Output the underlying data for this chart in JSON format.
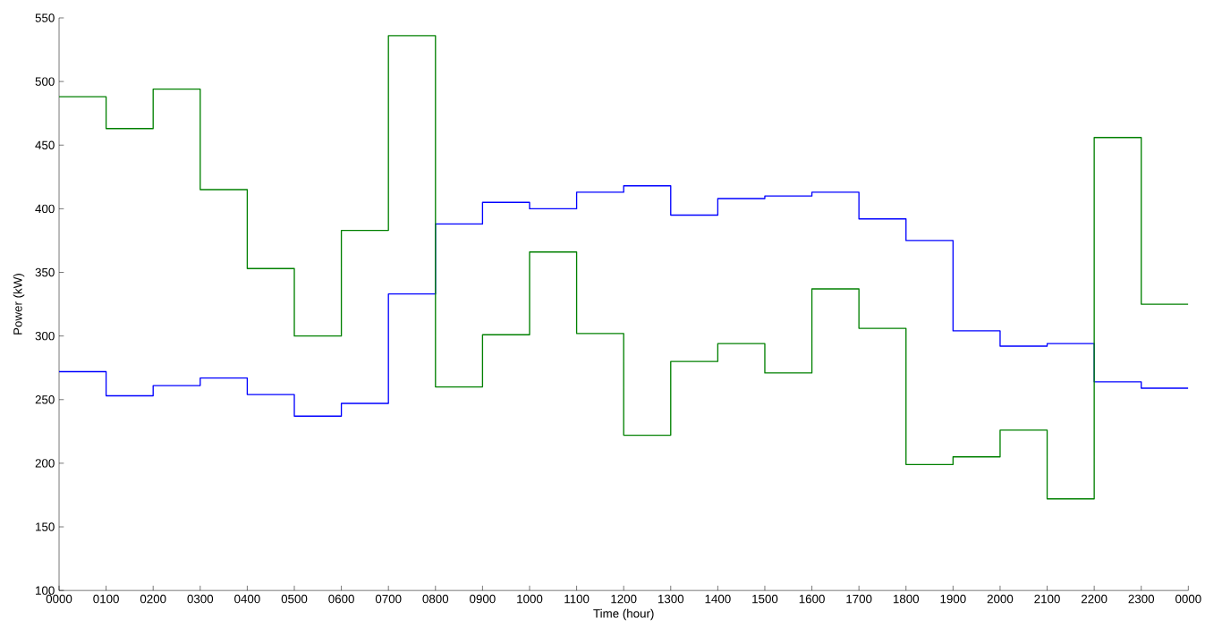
{
  "chart_data": {
    "type": "step",
    "xlabel": "Time (hour)",
    "ylabel": "Power (kW)",
    "categories": [
      "0000",
      "0100",
      "0200",
      "0300",
      "0400",
      "0500",
      "0600",
      "0700",
      "0800",
      "0900",
      "1000",
      "1100",
      "1200",
      "1300",
      "1400",
      "1500",
      "1600",
      "1700",
      "1800",
      "1900",
      "2000",
      "2100",
      "2200",
      "2300",
      "0000"
    ],
    "series": [
      {
        "color": "#0000ff",
        "values": [
          272,
          253,
          261,
          267,
          254,
          237,
          247,
          333,
          388,
          405,
          400,
          413,
          418,
          395,
          408,
          410,
          413,
          392,
          375,
          304,
          292,
          294,
          264,
          259,
          259
        ]
      },
      {
        "color": "#008000",
        "values": [
          488,
          463,
          494,
          415,
          353,
          300,
          383,
          536,
          260,
          301,
          366,
          302,
          222,
          280,
          294,
          271,
          337,
          306,
          199,
          205,
          226,
          172,
          456,
          325,
          325
        ]
      }
    ],
    "ylim": [
      100,
      550
    ],
    "yticks": [
      100,
      150,
      200,
      250,
      300,
      350,
      400,
      450,
      500,
      550
    ]
  }
}
